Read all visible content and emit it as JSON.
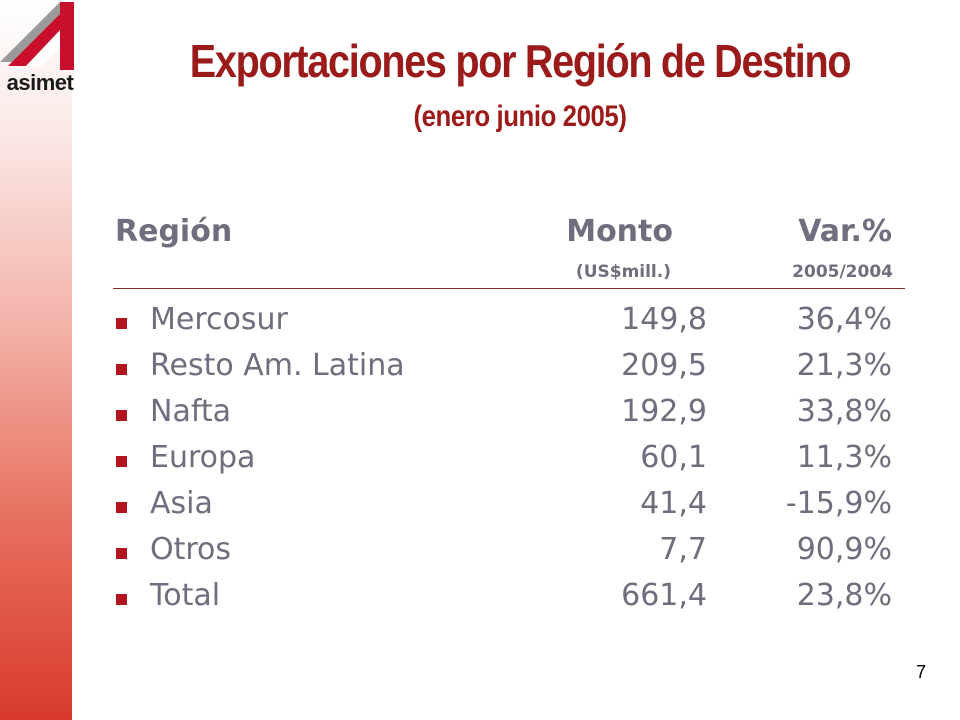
{
  "logo": {
    "text": "asimet",
    "colors": {
      "red": "#c8102e",
      "grey": "#9a9a9a",
      "dark": "#1a1a1a"
    }
  },
  "title": "Exportaciones por Región de Destino",
  "subtitle": "(enero junio 2005)",
  "table": {
    "headers": {
      "region": "Región",
      "monto": "Monto",
      "monto_unit": "(US$mill.)",
      "var": "Var.%",
      "var_period": "2005/2004"
    },
    "rows": [
      {
        "region": "Mercosur",
        "monto": "149,8",
        "var": "36,4%"
      },
      {
        "region": "Resto Am. Latina",
        "monto": "209,5",
        "var": "21,3%"
      },
      {
        "region": "Nafta",
        "monto": "192,9",
        "var": "33,8%"
      },
      {
        "region": "Europa",
        "monto": "60,1",
        "var": "11,3%"
      },
      {
        "region": "Asia",
        "monto": "41,4",
        "var": "-15,9%"
      },
      {
        "region": "Otros",
        "monto": "7,7",
        "var": "90,9%"
      },
      {
        "region": "Total",
        "monto": "661,4",
        "var": "23,8%"
      }
    ]
  },
  "page_number": "7",
  "colors": {
    "accent": "#9b1a1a",
    "bullet": "#b3151d",
    "text": "#6e6e7e"
  }
}
